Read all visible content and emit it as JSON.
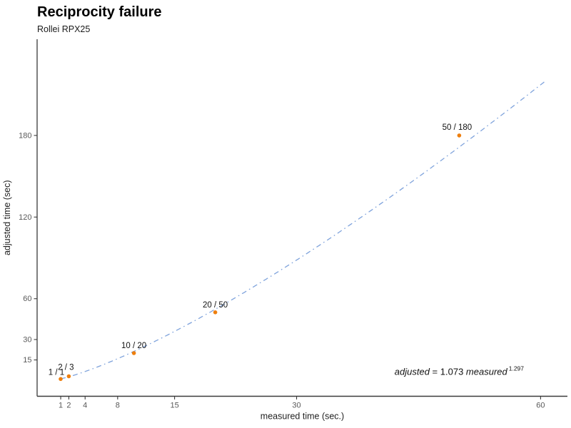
{
  "header": {
    "title": "Reciprocity failure",
    "subtitle": "Rollei RPX25"
  },
  "chart_data": {
    "type": "scatter",
    "title": "Reciprocity failure",
    "subtitle": "Rollei RPX25",
    "xlabel": "measured time (sec.)",
    "ylabel": "adjusted time (sec)",
    "x_ticks": [
      1,
      2,
      4,
      8,
      15,
      30,
      60
    ],
    "y_ticks": [
      15,
      30,
      60,
      120,
      180
    ],
    "xlim": [
      -1.9,
      63.3
    ],
    "ylim": [
      -11.7,
      250.7
    ],
    "grid": false,
    "legend": "none",
    "points": [
      {
        "measured": 1,
        "adjusted": 1,
        "label": "1 / 1",
        "label_offset": [
          -6,
          -6
        ]
      },
      {
        "measured": 2,
        "adjusted": 3,
        "label": "2 / 3",
        "label_offset": [
          -4,
          -9
        ]
      },
      {
        "measured": 10,
        "adjusted": 20,
        "label": "10 / 20",
        "label_offset": [
          0,
          -7
        ]
      },
      {
        "measured": 20,
        "adjusted": 50,
        "label": "20 / 50",
        "label_offset": [
          0,
          -7
        ]
      },
      {
        "measured": 50,
        "adjusted": 180,
        "label": "50 / 180",
        "label_offset": [
          -3,
          -8
        ]
      }
    ],
    "curve": {
      "model": "power",
      "coefficient": 1.073,
      "exponent": 1.297,
      "from": 1,
      "to": 60.5,
      "line_style": "dashdot"
    },
    "annotation": {
      "x": 50,
      "y": 4,
      "segments": [
        {
          "text": "adjusted",
          "style": "italic"
        },
        {
          "text": " = ",
          "style": "normal"
        },
        {
          "text": "1.073 ",
          "style": "normal"
        },
        {
          "text": "measured",
          "style": "italic"
        },
        {
          "text": "1.297",
          "style": "superscript"
        }
      ]
    },
    "colors": {
      "point": "#EE7F0E",
      "curve": "#7FA3DC",
      "axis": "#3a3a3a",
      "tick_label": "#595959",
      "text": "#111111"
    }
  }
}
